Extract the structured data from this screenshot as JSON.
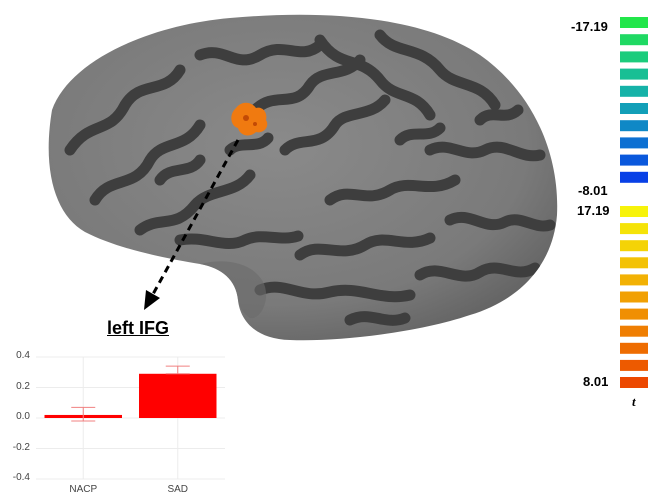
{
  "colorbar": {
    "negative_top_label": "-17.19",
    "negative_bottom_label": "-8.01",
    "positive_top_label": "17.19",
    "positive_bottom_label": "8.01",
    "unit_label": "t",
    "negative_colors": [
      "#22e64a",
      "#1fd963",
      "#1bcc7c",
      "#18bf94",
      "#15b2a8",
      "#129fb8",
      "#0f88c6",
      "#0c70d2",
      "#0a58dc",
      "#0840e6"
    ],
    "positive_colors": [
      "#f7f30a",
      "#f5e308",
      "#f4d306",
      "#f3c205",
      "#f2b104",
      "#f1a003",
      "#f08f02",
      "#ef7e02",
      "#ee6c01",
      "#ed5a00",
      "#ec4800"
    ]
  },
  "roi_title": "left IFG",
  "chart_data": {
    "type": "bar",
    "categories": [
      "NACP",
      "SAD"
    ],
    "values": [
      0.02,
      0.29
    ],
    "error_upper": [
      0.07,
      0.34
    ],
    "error_lower": [
      -0.02,
      0.29
    ],
    "ylim": [
      -0.4,
      0.4
    ],
    "yticks": [
      "0.4",
      "0.2",
      "0.0",
      "-0.2",
      "-0.4"
    ],
    "xlabel": "",
    "ylabel": "",
    "grid": true,
    "bar_color": "#ff0000"
  }
}
